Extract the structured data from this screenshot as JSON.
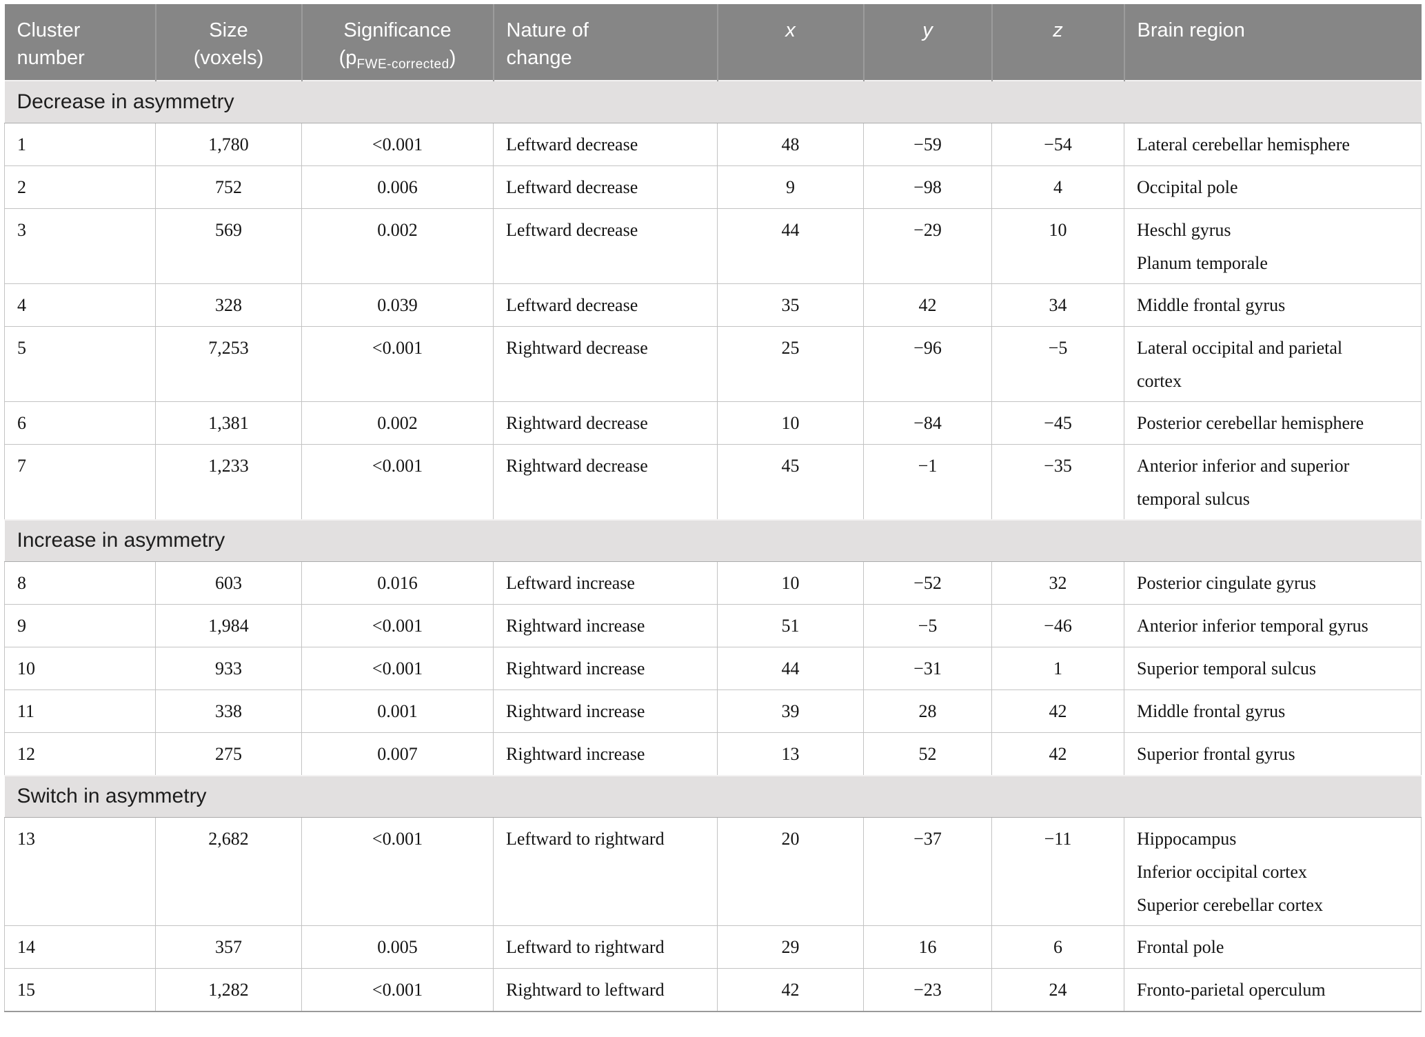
{
  "table": {
    "title_semantic": "Brain asymmetry clusters table",
    "header": {
      "cluster": "Cluster\nnumber",
      "size": "Size\n(voxels)",
      "significance_line1": "Significance",
      "significance_p_open": "(p",
      "significance_sub": "FWE-corrected",
      "significance_p_close": ")",
      "nature": "Nature of\nchange",
      "x": "x",
      "y": "y",
      "z": "z",
      "region": "Brain region"
    },
    "sections": [
      {
        "title": "Decrease in asymmetry",
        "rows": [
          {
            "cluster": "1",
            "size": "1,780",
            "significance": "<0.001",
            "nature": "Leftward decrease",
            "x": "48",
            "y": "−59",
            "z": "−54",
            "region": [
              "Lateral cerebellar hemisphere"
            ]
          },
          {
            "cluster": "2",
            "size": "752",
            "significance": "0.006",
            "nature": "Leftward decrease",
            "x": "9",
            "y": "−98",
            "z": "4",
            "region": [
              "Occipital pole"
            ]
          },
          {
            "cluster": "3",
            "size": "569",
            "significance": "0.002",
            "nature": "Leftward decrease",
            "x": "44",
            "y": "−29",
            "z": "10",
            "region": [
              "Heschl gyrus",
              "Planum temporale"
            ]
          },
          {
            "cluster": "4",
            "size": "328",
            "significance": "0.039",
            "nature": "Leftward decrease",
            "x": "35",
            "y": "42",
            "z": "34",
            "region": [
              "Middle frontal gyrus"
            ]
          },
          {
            "cluster": "5",
            "size": "7,253",
            "significance": "<0.001",
            "nature": "Rightward decrease",
            "x": "25",
            "y": "−96",
            "z": "−5",
            "region": [
              "Lateral occipital and parietal",
              "cortex"
            ]
          },
          {
            "cluster": "6",
            "size": "1,381",
            "significance": "0.002",
            "nature": "Rightward decrease",
            "x": "10",
            "y": "−84",
            "z": "−45",
            "region": [
              "Posterior cerebellar hemisphere"
            ]
          },
          {
            "cluster": "7",
            "size": "1,233",
            "significance": "<0.001",
            "nature": "Rightward decrease",
            "x": "45",
            "y": "−1",
            "z": "−35",
            "region": [
              "Anterior inferior and superior",
              "temporal sulcus"
            ]
          }
        ]
      },
      {
        "title": "Increase in asymmetry",
        "rows": [
          {
            "cluster": "8",
            "size": "603",
            "significance": "0.016",
            "nature": "Leftward increase",
            "x": "10",
            "y": "−52",
            "z": "32",
            "region": [
              "Posterior cingulate gyrus"
            ]
          },
          {
            "cluster": "9",
            "size": "1,984",
            "significance": "<0.001",
            "nature": "Rightward increase",
            "x": "51",
            "y": "−5",
            "z": "−46",
            "region": [
              "Anterior inferior temporal gyrus"
            ]
          },
          {
            "cluster": "10",
            "size": "933",
            "significance": "<0.001",
            "nature": "Rightward increase",
            "x": "44",
            "y": "−31",
            "z": "1",
            "region": [
              "Superior temporal sulcus"
            ]
          },
          {
            "cluster": "11",
            "size": "338",
            "significance": "0.001",
            "nature": "Rightward increase",
            "x": "39",
            "y": "28",
            "z": "42",
            "region": [
              "Middle frontal gyrus"
            ]
          },
          {
            "cluster": "12",
            "size": "275",
            "significance": "0.007",
            "nature": "Rightward increase",
            "x": "13",
            "y": "52",
            "z": "42",
            "region": [
              "Superior frontal gyrus"
            ]
          }
        ]
      },
      {
        "title": "Switch in asymmetry",
        "rows": [
          {
            "cluster": "13",
            "size": "2,682",
            "significance": "<0.001",
            "nature": "Leftward to rightward",
            "x": "20",
            "y": "−37",
            "z": "−11",
            "region": [
              "Hippocampus",
              "Inferior occipital cortex",
              "Superior cerebellar cortex"
            ]
          },
          {
            "cluster": "14",
            "size": "357",
            "significance": "0.005",
            "nature": "Leftward to rightward",
            "x": "29",
            "y": "16",
            "z": "6",
            "region": [
              "Frontal pole"
            ]
          },
          {
            "cluster": "15",
            "size": "1,282",
            "significance": "<0.001",
            "nature": "Rightward to leftward",
            "x": "42",
            "y": "−23",
            "z": "24",
            "region": [
              "Fronto-parietal operculum"
            ]
          }
        ]
      }
    ],
    "column_keys": [
      "cluster",
      "size",
      "significance",
      "nature",
      "x",
      "y",
      "z",
      "region"
    ],
    "column_alignments": [
      "left",
      "center",
      "center",
      "left",
      "center",
      "center",
      "center",
      "left"
    ]
  },
  "colors": {
    "header_background": "#868686",
    "header_text": "#ffffff",
    "header_separator": "#9c9c9c",
    "section_band_background": "#e2e0e0",
    "section_band_text": "#1d1d1d",
    "grid_line": "#c3c3c3",
    "body_text": "#141414",
    "table_bottom_edge": "#999999"
  }
}
